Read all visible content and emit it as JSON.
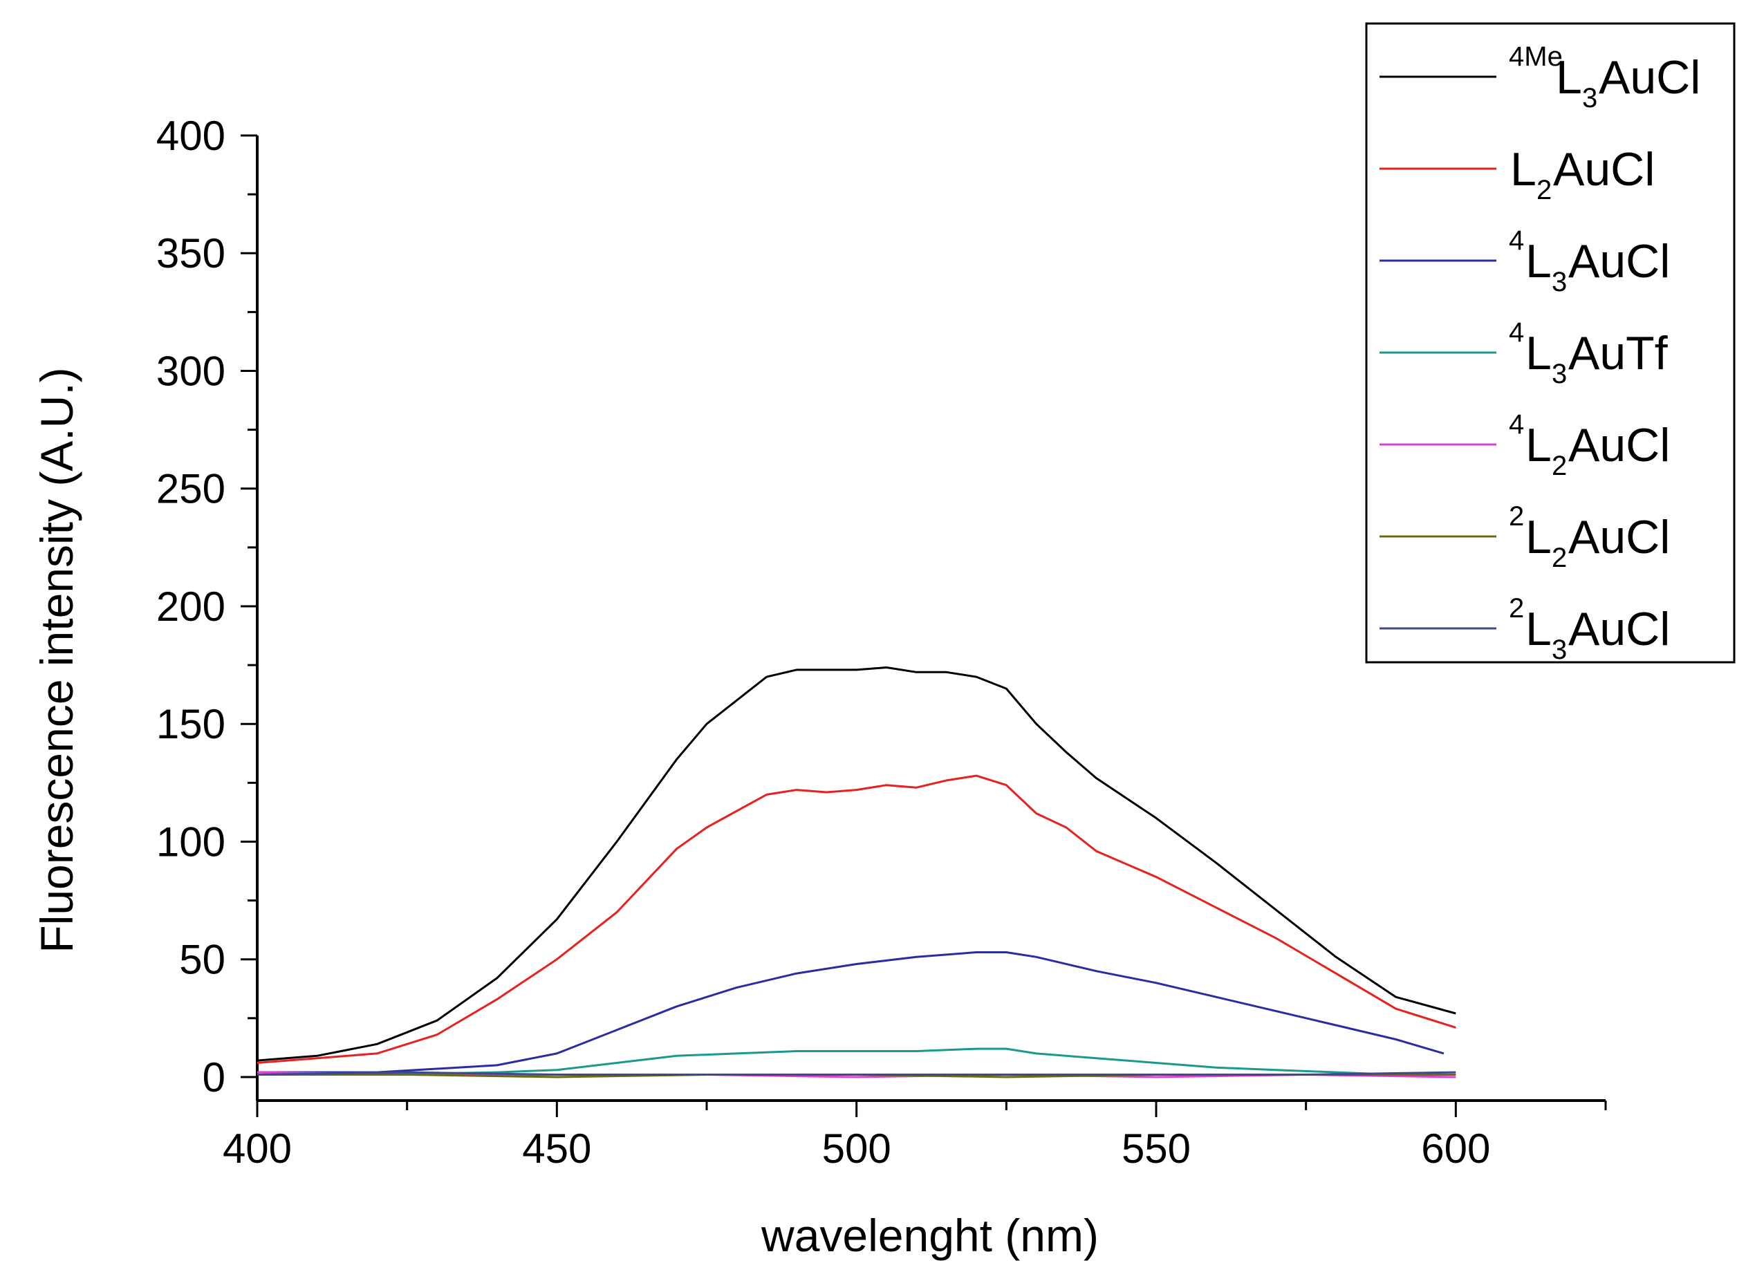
{
  "chart_data": {
    "type": "line",
    "title": "",
    "xlabel": "wavelenght (nm)",
    "ylabel": "Fluorescence intensity (A.U.)",
    "xlim": [
      400,
      625
    ],
    "ylim": [
      -10,
      400
    ],
    "x_ticks": [
      400,
      450,
      500,
      550,
      600
    ],
    "y_ticks": [
      0,
      50,
      100,
      150,
      200,
      250,
      300,
      350,
      400
    ],
    "x_tick_labels": [
      "400",
      "450",
      "500",
      "550",
      "600"
    ],
    "y_tick_labels": [
      "0",
      "50",
      "100",
      "150",
      "200",
      "250",
      "300",
      "350",
      "400"
    ],
    "legend_position": "top-right",
    "series": [
      {
        "name": "4MeL3AuCl",
        "label": {
          "sup": "4Me",
          "main": "L",
          "sub": "3",
          "rest": "AuCl"
        },
        "color": "#000000",
        "x": [
          400,
          410,
          420,
          430,
          440,
          450,
          460,
          470,
          475,
          480,
          485,
          490,
          495,
          500,
          505,
          510,
          515,
          520,
          525,
          530,
          535,
          540,
          550,
          560,
          570,
          580,
          590,
          600
        ],
        "y": [
          7,
          9,
          14,
          24,
          42,
          67,
          100,
          135,
          150,
          160,
          170,
          173,
          173,
          173,
          174,
          172,
          172,
          170,
          165,
          150,
          138,
          127,
          110,
          91,
          71,
          51,
          34,
          27
        ]
      },
      {
        "name": "L2AuCl",
        "label": {
          "sup": "",
          "main": "L",
          "sub": "2",
          "rest": "AuCl"
        },
        "color": "#e8201e",
        "x": [
          400,
          410,
          420,
          430,
          440,
          450,
          460,
          470,
          475,
          480,
          485,
          490,
          495,
          500,
          505,
          510,
          515,
          520,
          525,
          530,
          535,
          540,
          550,
          560,
          570,
          580,
          590,
          600
        ],
        "y": [
          6,
          8,
          10,
          18,
          33,
          50,
          70,
          97,
          106,
          113,
          120,
          122,
          121,
          122,
          124,
          123,
          126,
          128,
          124,
          112,
          106,
          96,
          85,
          72,
          59,
          44,
          29,
          21
        ]
      },
      {
        "name": "4L3AuCl",
        "label": {
          "sup": "4",
          "main": "L",
          "sub": "3",
          "rest": "AuCl"
        },
        "color": "#2b2ba3",
        "x": [
          400,
          420,
          440,
          450,
          460,
          470,
          480,
          490,
          500,
          510,
          520,
          525,
          530,
          540,
          550,
          560,
          570,
          580,
          590,
          598
        ],
        "y": [
          2,
          2,
          5,
          10,
          20,
          30,
          38,
          44,
          48,
          51,
          53,
          53,
          51,
          45,
          40,
          34,
          28,
          22,
          16,
          10
        ]
      },
      {
        "name": "4L3AuTf",
        "label": {
          "sup": "4",
          "main": "L",
          "sub": "3",
          "rest": "AuTf"
        },
        "color": "#1a9a8c",
        "x": [
          400,
          420,
          440,
          450,
          460,
          470,
          480,
          490,
          500,
          510,
          520,
          525,
          530,
          540,
          550,
          560,
          570,
          580,
          590,
          600
        ],
        "y": [
          1,
          1,
          2,
          3,
          6,
          9,
          10,
          11,
          11,
          11,
          12,
          12,
          10,
          8,
          6,
          4,
          3,
          2,
          1,
          1
        ]
      },
      {
        "name": "4L2AuCl",
        "label": {
          "sup": "4",
          "main": "L",
          "sub": "2",
          "rest": "AuCl"
        },
        "color": "#e040d0",
        "x": [
          400,
          425,
          450,
          475,
          500,
          525,
          550,
          575,
          600
        ],
        "y": [
          2,
          1,
          1,
          1,
          0,
          1,
          0,
          1,
          0
        ]
      },
      {
        "name": "2L2AuCl",
        "label": {
          "sup": "2",
          "main": "L",
          "sub": "2",
          "rest": "AuCl"
        },
        "color": "#6b6b10",
        "x": [
          400,
          425,
          450,
          475,
          500,
          525,
          550,
          575,
          600
        ],
        "y": [
          1,
          1,
          0,
          1,
          1,
          0,
          1,
          1,
          1
        ]
      },
      {
        "name": "2L3AuCl",
        "label": {
          "sup": "2",
          "main": "L",
          "sub": "3",
          "rest": "AuCl"
        },
        "color": "#3d4a8a",
        "x": [
          400,
          425,
          450,
          475,
          500,
          525,
          550,
          575,
          600
        ],
        "y": [
          1,
          2,
          1,
          1,
          1,
          1,
          1,
          1,
          2
        ]
      }
    ]
  }
}
